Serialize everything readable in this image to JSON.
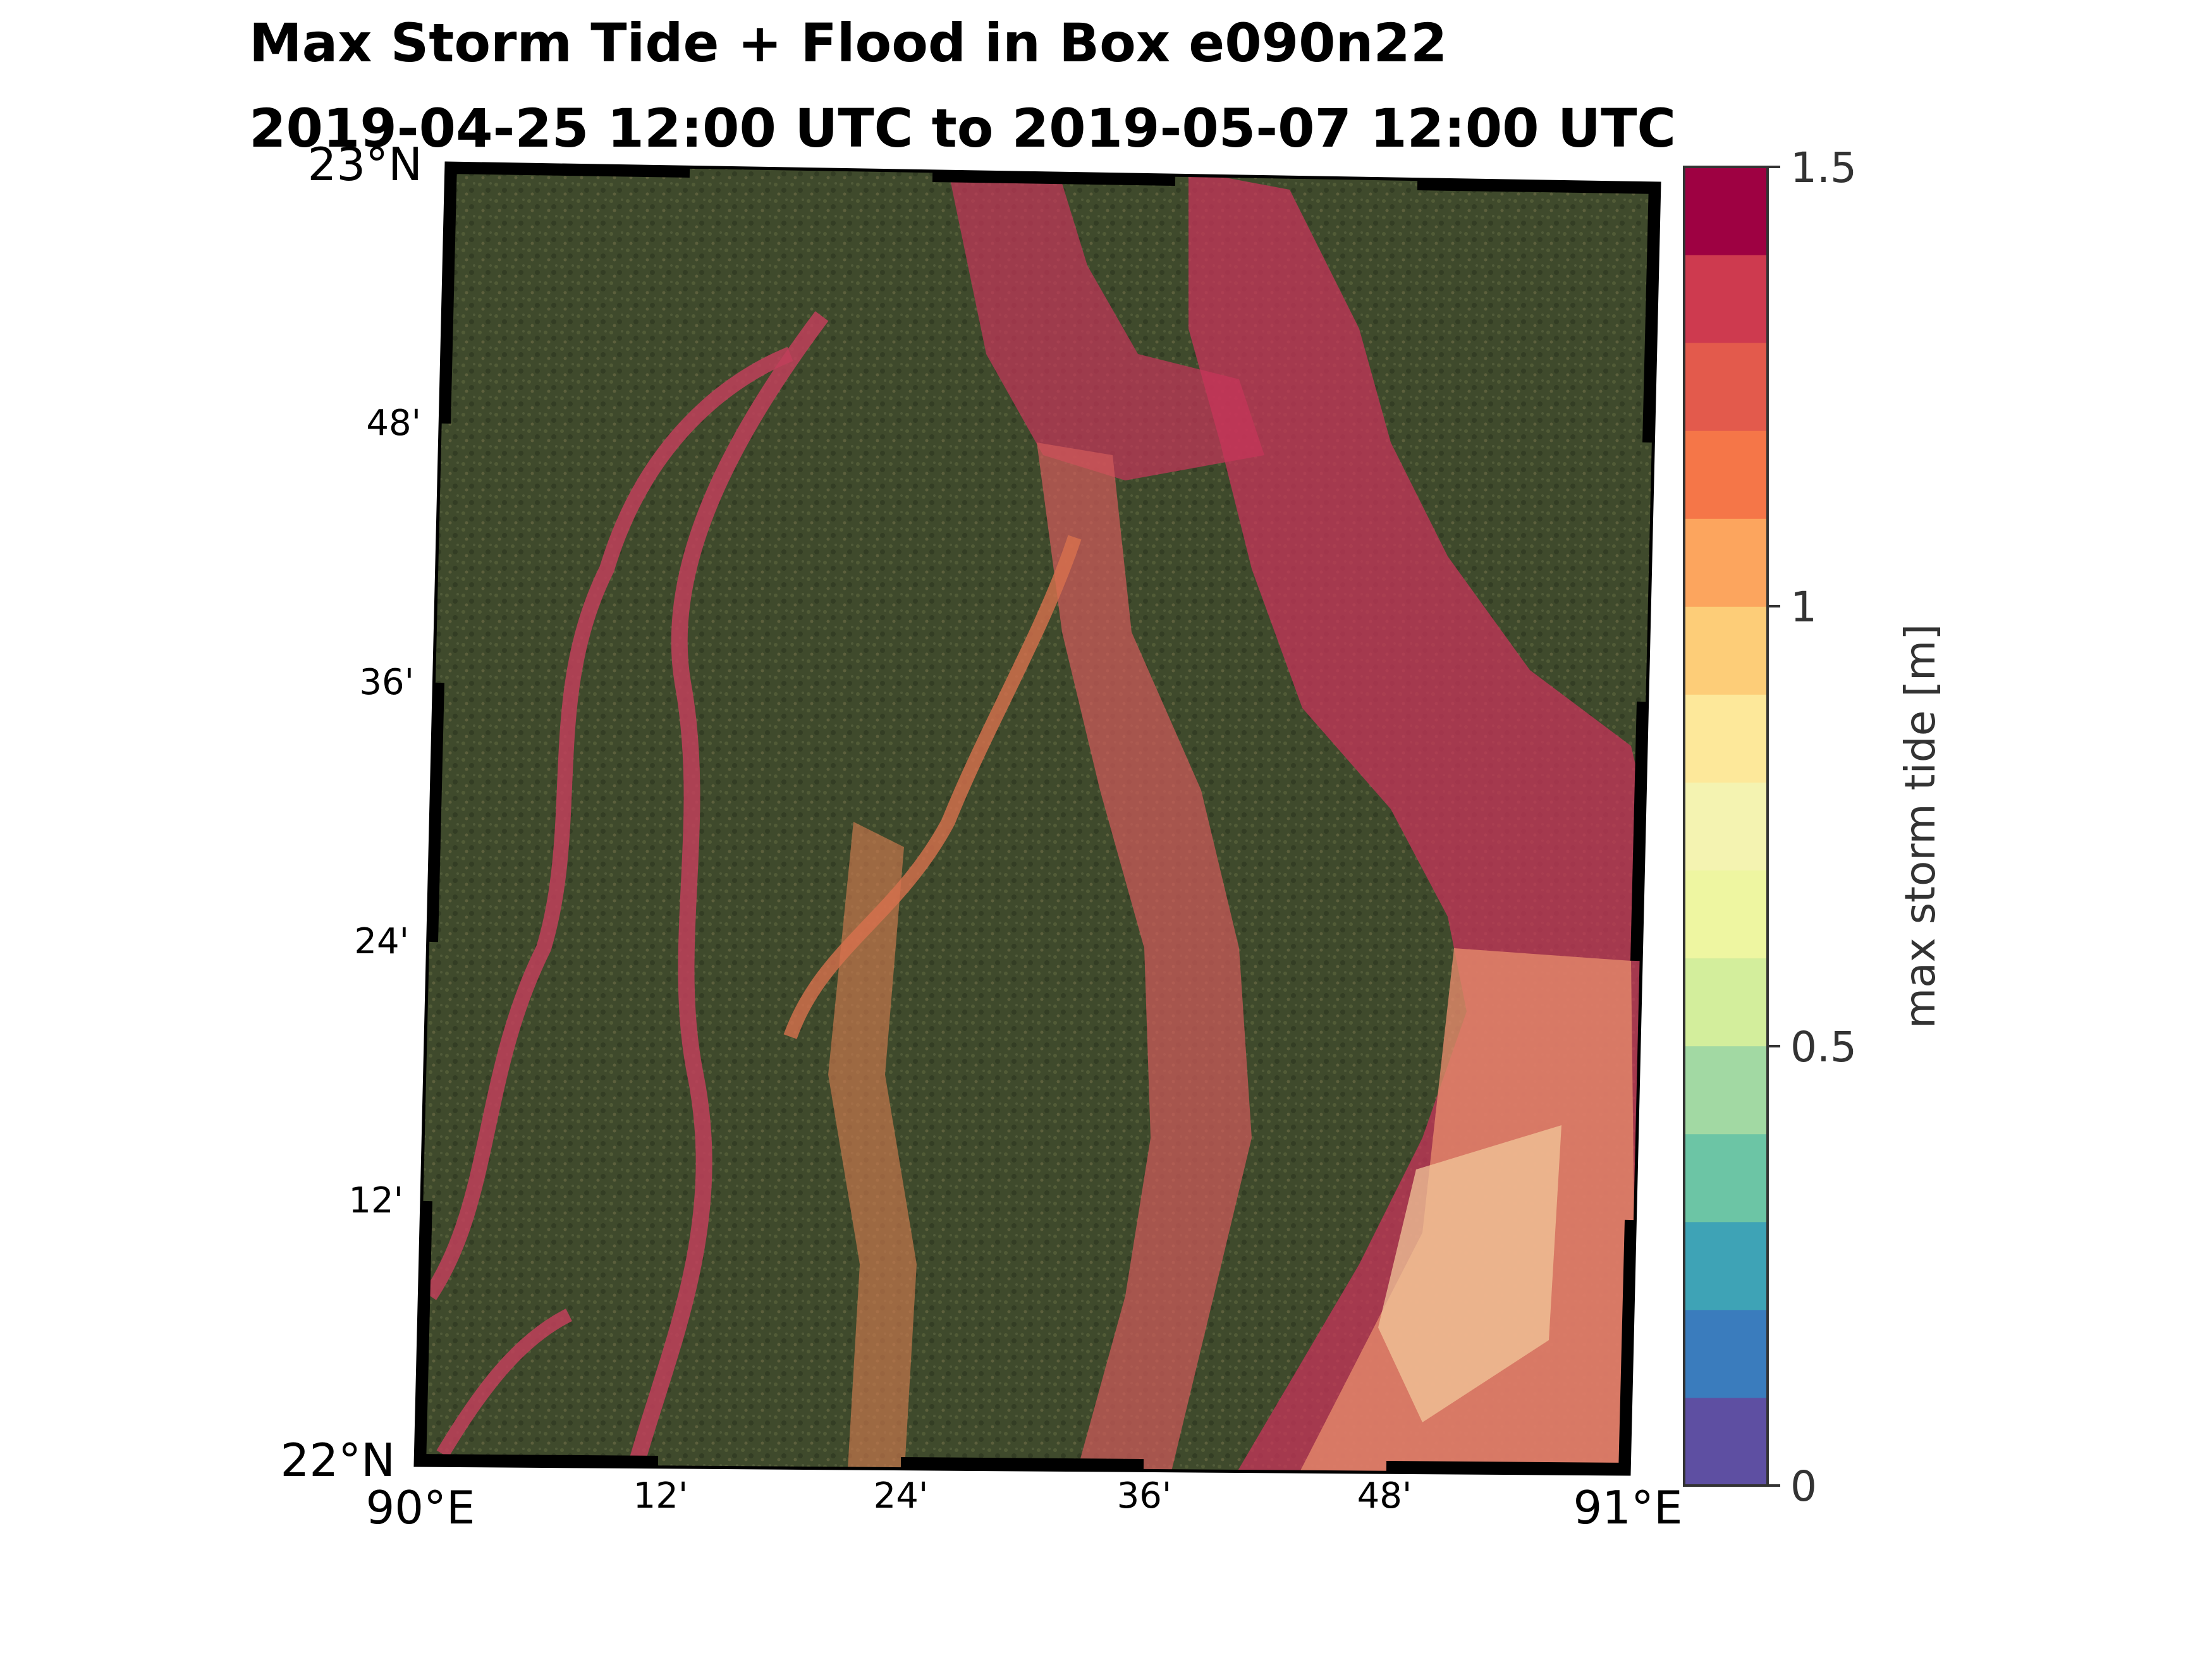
{
  "title": {
    "line1": "Max Storm Tide + Flood in Box e090n22",
    "line2": "2019-04-25 12:00 UTC to 2019-05-07 12:00 UTC"
  },
  "map": {
    "lat_range": [
      22,
      23
    ],
    "lon_range": [
      90,
      91
    ],
    "lat_ticks": [
      "23°N",
      "48'",
      "36'",
      "24'",
      "12'",
      "22°N"
    ],
    "lon_ticks": [
      "90°E",
      "12'",
      "24'",
      "36'",
      "48'",
      "91°E"
    ]
  },
  "colorbar": {
    "label": "max storm tide [m]",
    "range": [
      0,
      1.5
    ],
    "tick_labels": [
      "1.5",
      "1",
      "0.5",
      "0"
    ],
    "colors": [
      "#5e4fa2",
      "#3a7cbd",
      "#3ea3b6",
      "#6cc5a5",
      "#a2d9a3",
      "#d3ee9c",
      "#eef6a1",
      "#f4f3b1",
      "#fde89a",
      "#fdcd78",
      "#fca55e",
      "#f57648",
      "#e35a4c",
      "#ce3a4f",
      "#9e0142"
    ]
  }
}
